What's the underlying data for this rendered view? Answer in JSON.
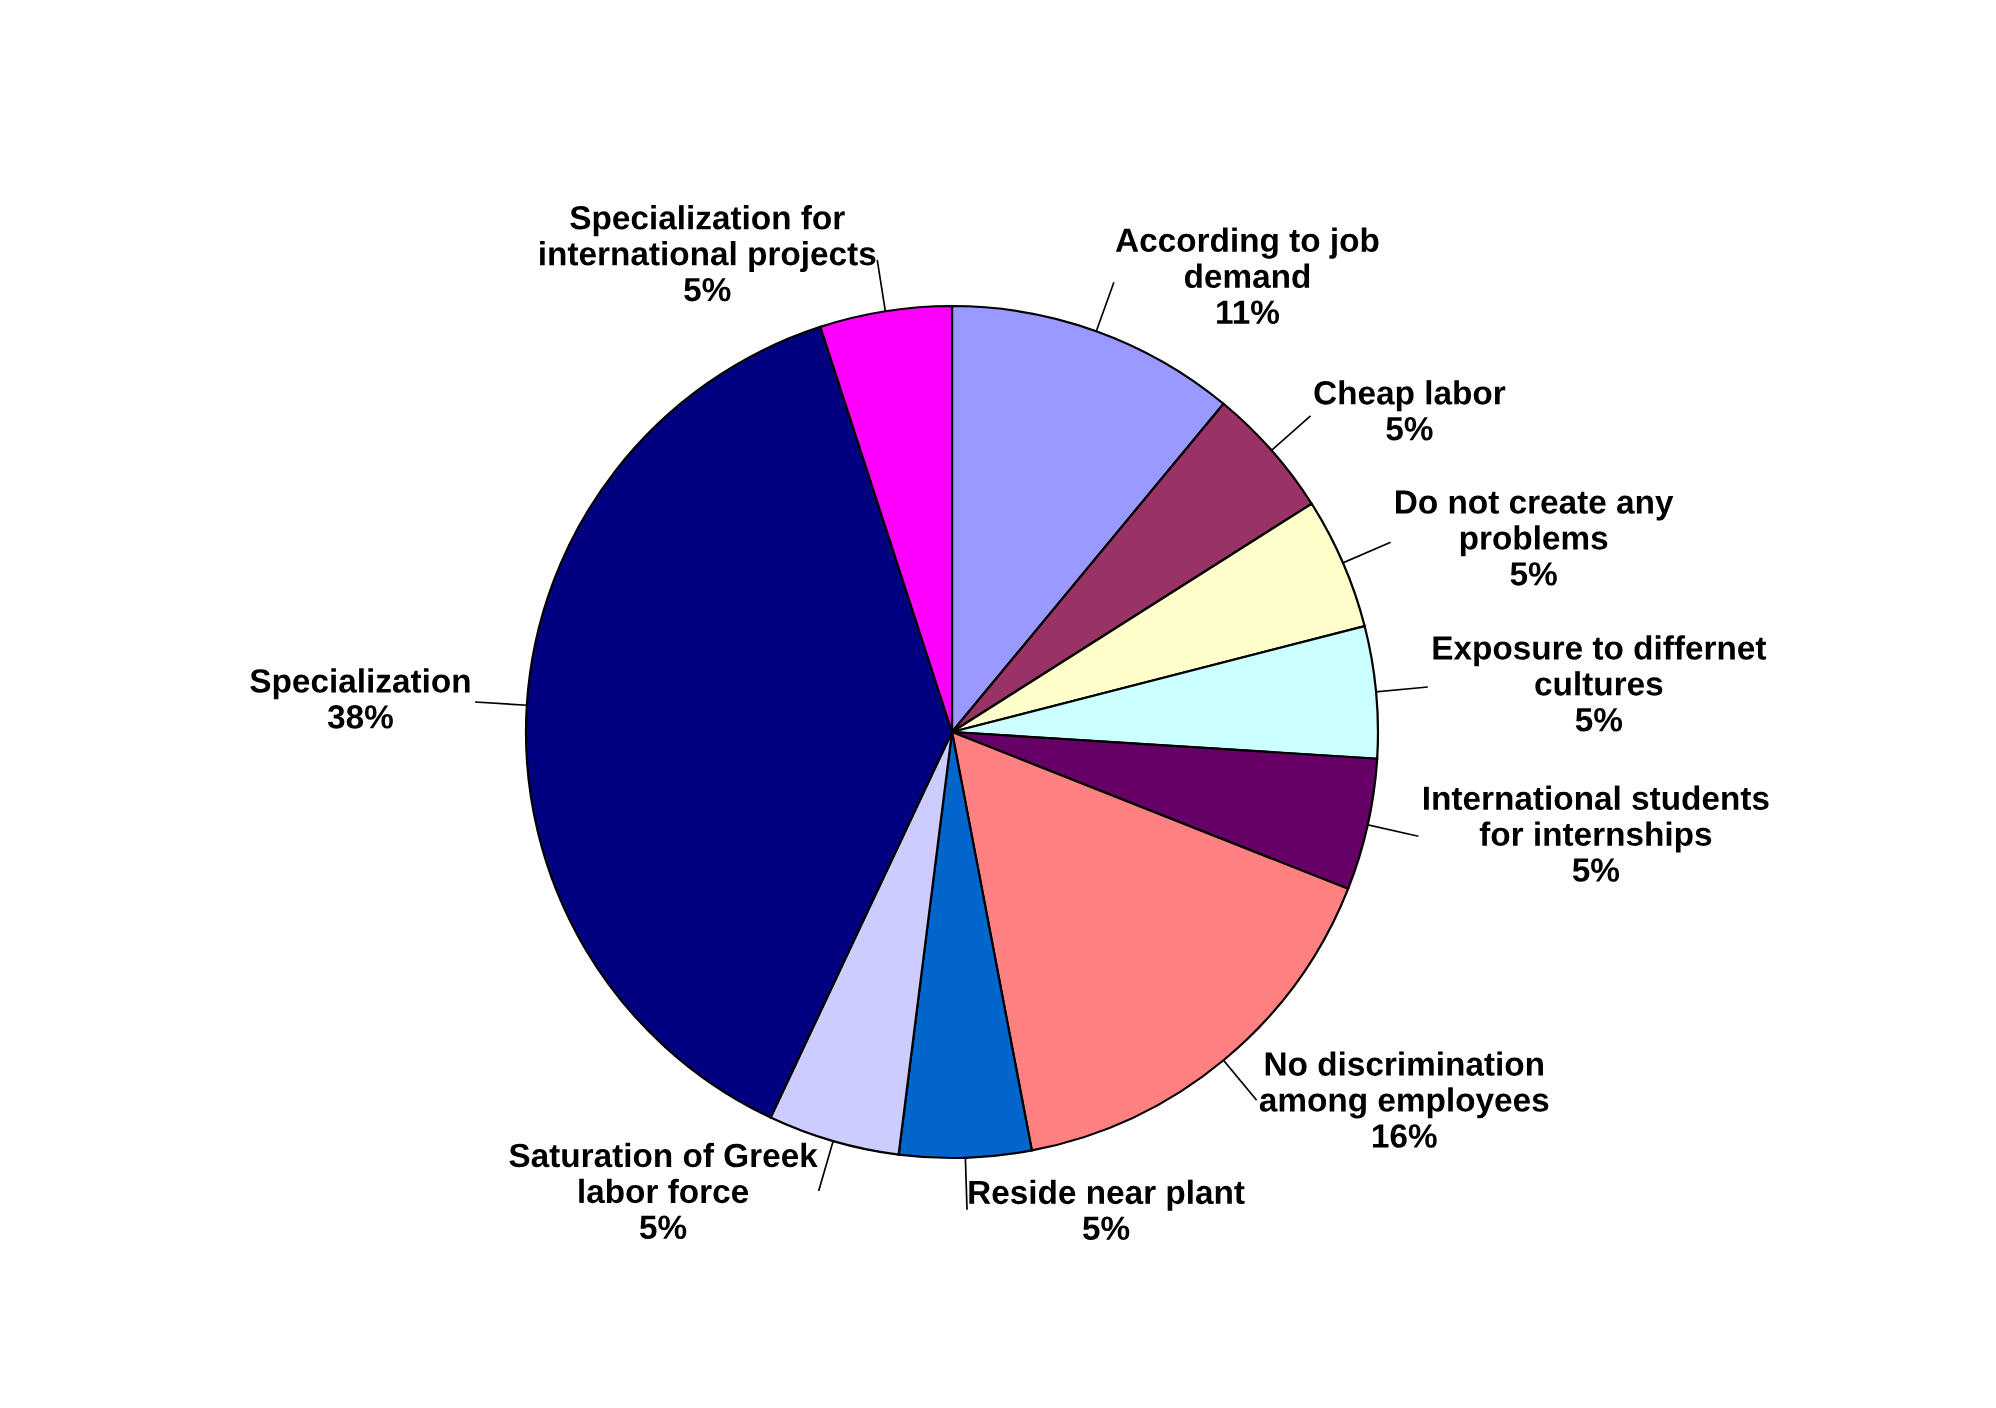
{
  "chart_data": {
    "type": "pie",
    "categories": [
      "According to job\ndemand",
      "Cheap labor",
      "Do not create any\nproblems",
      "Exposure to differnet\ncultures",
      "International students\nfor internships",
      "No discrimination\namong employees",
      "Reside near plant",
      "Saturation of Greek\nlabor force",
      "Specialization",
      "Specialization for\ninternational projects"
    ],
    "values": [
      11,
      5,
      5,
      5,
      5,
      16,
      5,
      5,
      38,
      5
    ],
    "value_labels": [
      "11%",
      "5%",
      "5%",
      "5%",
      "5%",
      "16%",
      "5%",
      "5%",
      "38%",
      "5%"
    ],
    "colors": [
      "#9999ff",
      "#993366",
      "#ffffcc",
      "#ccffff",
      "#660066",
      "#ff8080",
      "#0066cc",
      "#ccccff",
      "#000080",
      "#ff00ff"
    ],
    "legend": false
  }
}
